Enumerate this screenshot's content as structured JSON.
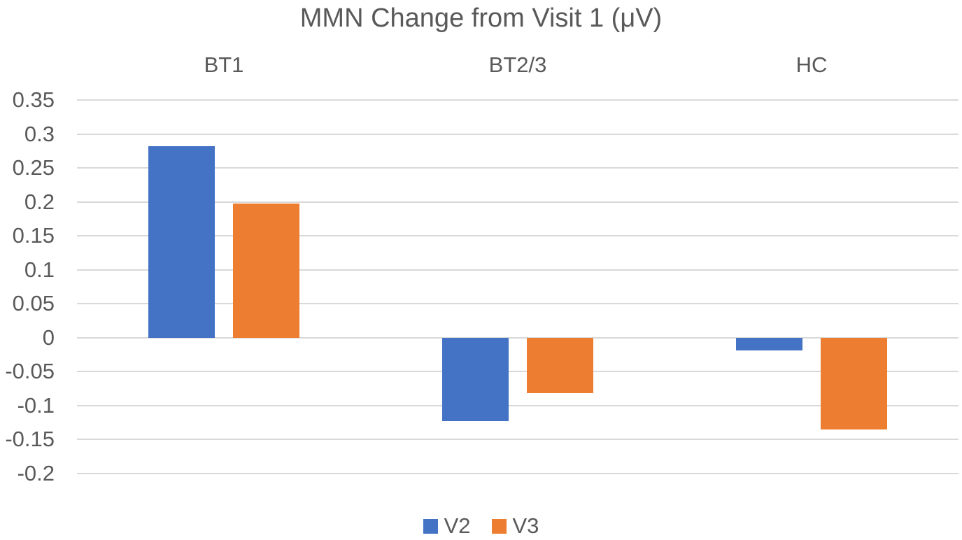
{
  "chart_data": {
    "type": "bar",
    "title": "MMN Change from Visit 1 (μV)",
    "categories": [
      "BT1",
      "BT2/3",
      "HC"
    ],
    "series": [
      {
        "name": "V2",
        "color": "#4472C4",
        "values": [
          0.282,
          -0.123,
          -0.019
        ]
      },
      {
        "name": "V3",
        "color": "#ED7D31",
        "values": [
          0.198,
          -0.082,
          -0.135
        ]
      }
    ],
    "y_ticks": [
      0.35,
      0.3,
      0.25,
      0.2,
      0.15,
      0.1,
      0.05,
      0,
      -0.05,
      -0.1,
      -0.15,
      -0.2
    ],
    "ylim": [
      -0.2,
      0.35
    ],
    "xlabel": "",
    "ylabel": "",
    "grid": "horizontal",
    "legend_position": "bottom",
    "category_label_position": "top",
    "colors": {
      "text": "#595959",
      "gridline": "#D9D9D9",
      "background": "#FFFFFF"
    }
  }
}
